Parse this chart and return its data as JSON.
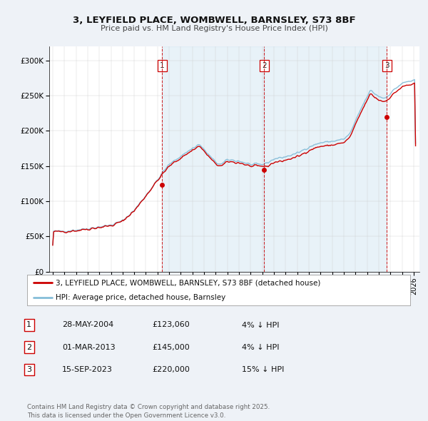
{
  "title": "3, LEYFIELD PLACE, WOMBWELL, BARNSLEY, S73 8BF",
  "subtitle": "Price paid vs. HM Land Registry's House Price Index (HPI)",
  "ylim": [
    0,
    320000
  ],
  "yticks": [
    0,
    50000,
    100000,
    150000,
    200000,
    250000,
    300000
  ],
  "ytick_labels": [
    "£0",
    "£50K",
    "£100K",
    "£150K",
    "£200K",
    "£250K",
    "£300K"
  ],
  "xlim_start": 1994.7,
  "xlim_end": 2026.5,
  "xticks": [
    1995,
    1996,
    1997,
    1998,
    1999,
    2000,
    2001,
    2002,
    2003,
    2004,
    2005,
    2006,
    2007,
    2008,
    2009,
    2010,
    2011,
    2012,
    2013,
    2014,
    2015,
    2016,
    2017,
    2018,
    2019,
    2020,
    2021,
    2022,
    2023,
    2024,
    2025,
    2026
  ],
  "sale_dates": [
    2004.41,
    2013.17,
    2023.71
  ],
  "sale_prices": [
    123060,
    145000,
    220000
  ],
  "sale_labels": [
    "1",
    "2",
    "3"
  ],
  "hpi_color": "#85bdd8",
  "price_color": "#cc0000",
  "marker_color": "#cc0000",
  "vline_color": "#cc0000",
  "shade_color": "#cde4f0",
  "legend_label_red": "3, LEYFIELD PLACE, WOMBWELL, BARNSLEY, S73 8BF (detached house)",
  "legend_label_blue": "HPI: Average price, detached house, Barnsley",
  "table_rows": [
    [
      "1",
      "28-MAY-2004",
      "£123,060",
      "4% ↓ HPI"
    ],
    [
      "2",
      "01-MAR-2013",
      "£145,000",
      "4% ↓ HPI"
    ],
    [
      "3",
      "15-SEP-2023",
      "£220,000",
      "15% ↓ HPI"
    ]
  ],
  "footer": "Contains HM Land Registry data © Crown copyright and database right 2025.\nThis data is licensed under the Open Government Licence v3.0.",
  "background_color": "#eef2f7"
}
